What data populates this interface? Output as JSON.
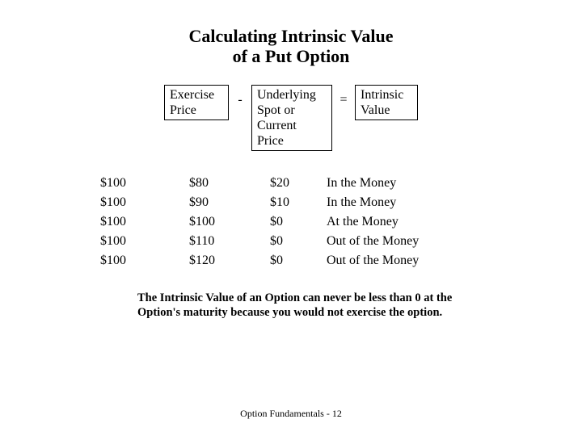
{
  "title_line1": "Calculating Intrinsic Value",
  "title_line2": "of a Put Option",
  "formula": {
    "box1_line1": "Exercise",
    "box1_line2": "Price",
    "minus": "-",
    "box2_line1": "Underlying",
    "box2_line2": "Spot or",
    "box2_line3": "Current",
    "box2_line4": "Price",
    "equals": "=",
    "box3_line1": "Intrinsic",
    "box3_line2": "Value"
  },
  "rows": [
    {
      "exercise": "$100",
      "spot": "$80",
      "iv": "$20",
      "status": "In the Money"
    },
    {
      "exercise": "$100",
      "spot": "$90",
      "iv": "$10",
      "status": "In the Money"
    },
    {
      "exercise": "$100",
      "spot": "$100",
      "iv": "$0",
      "status": "At the Money"
    },
    {
      "exercise": "$100",
      "spot": "$110",
      "iv": "$0",
      "status": "Out of the Money"
    },
    {
      "exercise": "$100",
      "spot": "$120",
      "iv": "$0",
      "status": "Out of the Money"
    }
  ],
  "note": "The Intrinsic Value of an Option can never be less than 0 at the Option's maturity because you would not exercise the option.",
  "footer": "Option Fundamentals - 12",
  "styling": {
    "background": "#ffffff",
    "text_color": "#000000",
    "border_color": "#000000",
    "title_fontsize": 22,
    "body_fontsize": 16,
    "note_fontsize": 14.5,
    "footer_fontsize": 12,
    "font_family": "Times New Roman"
  }
}
